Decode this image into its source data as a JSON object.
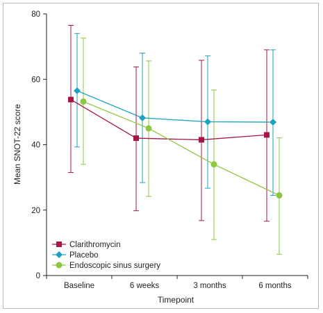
{
  "chart_data": {
    "type": "line",
    "title": "",
    "xlabel": "Timepoint",
    "ylabel": "Mean SNOT-22 score",
    "categories": [
      "Baseline",
      "6 weeks",
      "3 months",
      "6 months"
    ],
    "ylim": [
      0,
      80
    ],
    "yticks": [
      0,
      20,
      40,
      60,
      80
    ],
    "grid": false,
    "legend_position": "bottom-left",
    "series": [
      {
        "name": "Clarithromycin",
        "color": "#a8154b",
        "marker": "square",
        "values": [
          53.8,
          42.0,
          41.5,
          43.0
        ],
        "error_low": [
          31.5,
          19.8,
          16.8,
          16.6
        ],
        "error_high": [
          76.5,
          63.8,
          65.8,
          69.0
        ]
      },
      {
        "name": "Placebo",
        "color": "#1aa2c0",
        "marker": "diamond",
        "values": [
          56.5,
          48.2,
          47.0,
          46.9
        ],
        "error_low": [
          39.3,
          28.4,
          26.7,
          24.5
        ],
        "error_high": [
          74.0,
          68.0,
          67.2,
          69.0
        ]
      },
      {
        "name": "Endoscopic sinus surgery",
        "color": "#8dc63f",
        "marker": "circle",
        "values": [
          53.2,
          45.0,
          34.0,
          24.5
        ],
        "error_low": [
          34.0,
          24.2,
          11.0,
          6.5
        ],
        "error_high": [
          72.6,
          65.6,
          56.7,
          42.1
        ]
      }
    ]
  }
}
